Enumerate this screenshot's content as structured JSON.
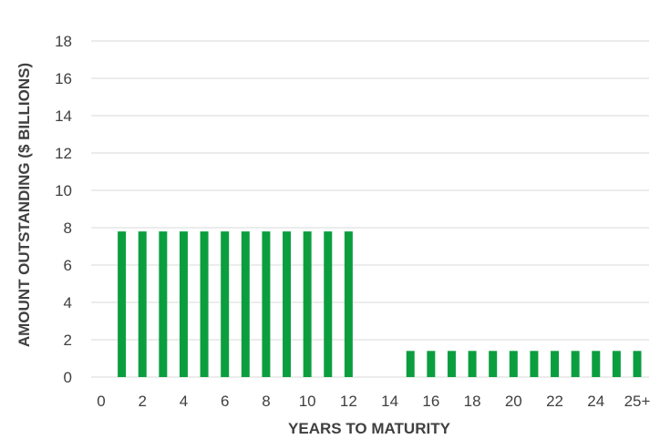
{
  "chart_data": {
    "type": "bar",
    "title": "",
    "xlabel": "YEARS TO MATURITY",
    "ylabel": "AMOUNT OUTSTANDING ($ BILLIONS)",
    "ylim": [
      0,
      18
    ],
    "yticks": [
      0,
      2,
      4,
      6,
      8,
      10,
      12,
      14,
      16,
      18
    ],
    "xlim": [
      0,
      26
    ],
    "xticks": [
      {
        "value": 0,
        "label": "0"
      },
      {
        "value": 2,
        "label": "2"
      },
      {
        "value": 4,
        "label": "4"
      },
      {
        "value": 6,
        "label": "6"
      },
      {
        "value": 8,
        "label": "8"
      },
      {
        "value": 10,
        "label": "10"
      },
      {
        "value": 12,
        "label": "12"
      },
      {
        "value": 14,
        "label": "14"
      },
      {
        "value": 16,
        "label": "16"
      },
      {
        "value": 18,
        "label": "18"
      },
      {
        "value": 20,
        "label": "20"
      },
      {
        "value": 22,
        "label": "22"
      },
      {
        "value": 24,
        "label": "24"
      },
      {
        "value": 26,
        "label": "25+"
      }
    ],
    "grid": true,
    "legend": "none",
    "bar_color": "#0b9e3f",
    "x": [
      1,
      2,
      3,
      4,
      5,
      6,
      7,
      8,
      9,
      10,
      11,
      12,
      15,
      16,
      17,
      18,
      19,
      20,
      21,
      22,
      23,
      24,
      25,
      26
    ],
    "values": [
      7.8,
      7.8,
      7.8,
      7.8,
      7.8,
      7.8,
      7.8,
      7.8,
      7.8,
      7.8,
      7.8,
      7.8,
      1.4,
      1.4,
      1.4,
      1.4,
      1.4,
      1.4,
      1.4,
      1.4,
      1.4,
      1.4,
      1.4,
      1.4
    ]
  }
}
